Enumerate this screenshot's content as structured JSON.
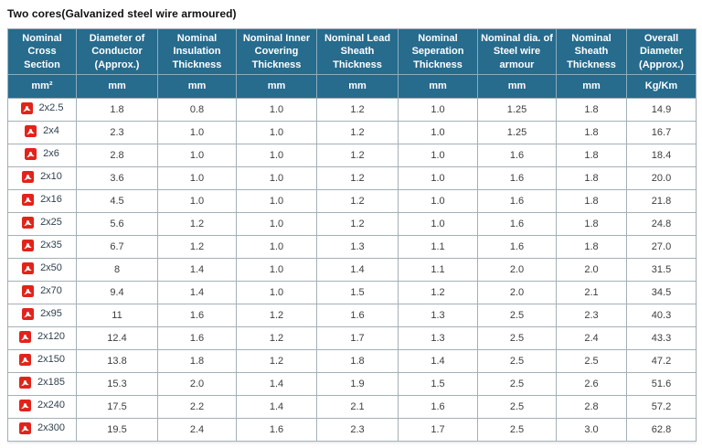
{
  "title": "Two cores(Galvanized steel wire armoured)",
  "colors": {
    "header_bg": "#276b8d",
    "header_text": "#ffffff",
    "grid_border": "#a3b0b9",
    "pdf_icon_red": "#e2231a",
    "cell_text": "#3d3d3d"
  },
  "icons": {
    "row_link_icon": "pdf-file-icon"
  },
  "table": {
    "columns": [
      {
        "label": "Nominal Cross Section",
        "unit": "mm²"
      },
      {
        "label": "Diameter of Conductor (Approx.)",
        "unit": "mm"
      },
      {
        "label": "Nominal Insulation Thickness",
        "unit": "mm"
      },
      {
        "label": "Nominal Inner Covering Thickness",
        "unit": "mm"
      },
      {
        "label": "Nominal Lead Sheath Thickness",
        "unit": "mm"
      },
      {
        "label": "Nominal Seperation Thickness",
        "unit": "mm"
      },
      {
        "label": "Nominal dia. of Steel wire armour",
        "unit": "mm"
      },
      {
        "label": "Nominal Sheath Thickness",
        "unit": "mm"
      },
      {
        "label": "Overall Diameter (Approx.)",
        "unit": "Kg/Km"
      }
    ],
    "rows": [
      {
        "size": "2x2.5",
        "values": [
          "1.8",
          "0.8",
          "1.0",
          "1.2",
          "1.0",
          "1.25",
          "1.8",
          "14.9"
        ]
      },
      {
        "size": "2x4",
        "values": [
          "2.3",
          "1.0",
          "1.0",
          "1.2",
          "1.0",
          "1.25",
          "1.8",
          "16.7"
        ]
      },
      {
        "size": "2x6",
        "values": [
          "2.8",
          "1.0",
          "1.0",
          "1.2",
          "1.0",
          "1.6",
          "1.8",
          "18.4"
        ]
      },
      {
        "size": "2x10",
        "values": [
          "3.6",
          "1.0",
          "1.0",
          "1.2",
          "1.0",
          "1.6",
          "1.8",
          "20.0"
        ]
      },
      {
        "size": "2x16",
        "values": [
          "4.5",
          "1.0",
          "1.0",
          "1.2",
          "1.0",
          "1.6",
          "1.8",
          "21.8"
        ]
      },
      {
        "size": "2x25",
        "values": [
          "5.6",
          "1.2",
          "1.0",
          "1.2",
          "1.0",
          "1.6",
          "1.8",
          "24.8"
        ]
      },
      {
        "size": "2x35",
        "values": [
          "6.7",
          "1.2",
          "1.0",
          "1.3",
          "1.1",
          "1.6",
          "1.8",
          "27.0"
        ]
      },
      {
        "size": "2x50",
        "values": [
          "8",
          "1.4",
          "1.0",
          "1.4",
          "1.1",
          "2.0",
          "2.0",
          "31.5"
        ]
      },
      {
        "size": "2x70",
        "values": [
          "9.4",
          "1.4",
          "1.0",
          "1.5",
          "1.2",
          "2.0",
          "2.1",
          "34.5"
        ]
      },
      {
        "size": "2x95",
        "values": [
          "11",
          "1.6",
          "1.2",
          "1.6",
          "1.3",
          "2.5",
          "2.3",
          "40.3"
        ]
      },
      {
        "size": "2x120",
        "values": [
          "12.4",
          "1.6",
          "1.2",
          "1.7",
          "1.3",
          "2.5",
          "2.4",
          "43.3"
        ]
      },
      {
        "size": "2x150",
        "values": [
          "13.8",
          "1.8",
          "1.2",
          "1.8",
          "1.4",
          "2.5",
          "2.5",
          "47.2"
        ]
      },
      {
        "size": "2x185",
        "values": [
          "15.3",
          "2.0",
          "1.4",
          "1.9",
          "1.5",
          "2.5",
          "2.6",
          "51.6"
        ]
      },
      {
        "size": "2x240",
        "values": [
          "17.5",
          "2.2",
          "1.4",
          "2.1",
          "1.6",
          "2.5",
          "2.8",
          "57.2"
        ]
      },
      {
        "size": "2x300",
        "values": [
          "19.5",
          "2.4",
          "1.6",
          "2.3",
          "1.7",
          "2.5",
          "3.0",
          "62.8"
        ]
      }
    ]
  }
}
